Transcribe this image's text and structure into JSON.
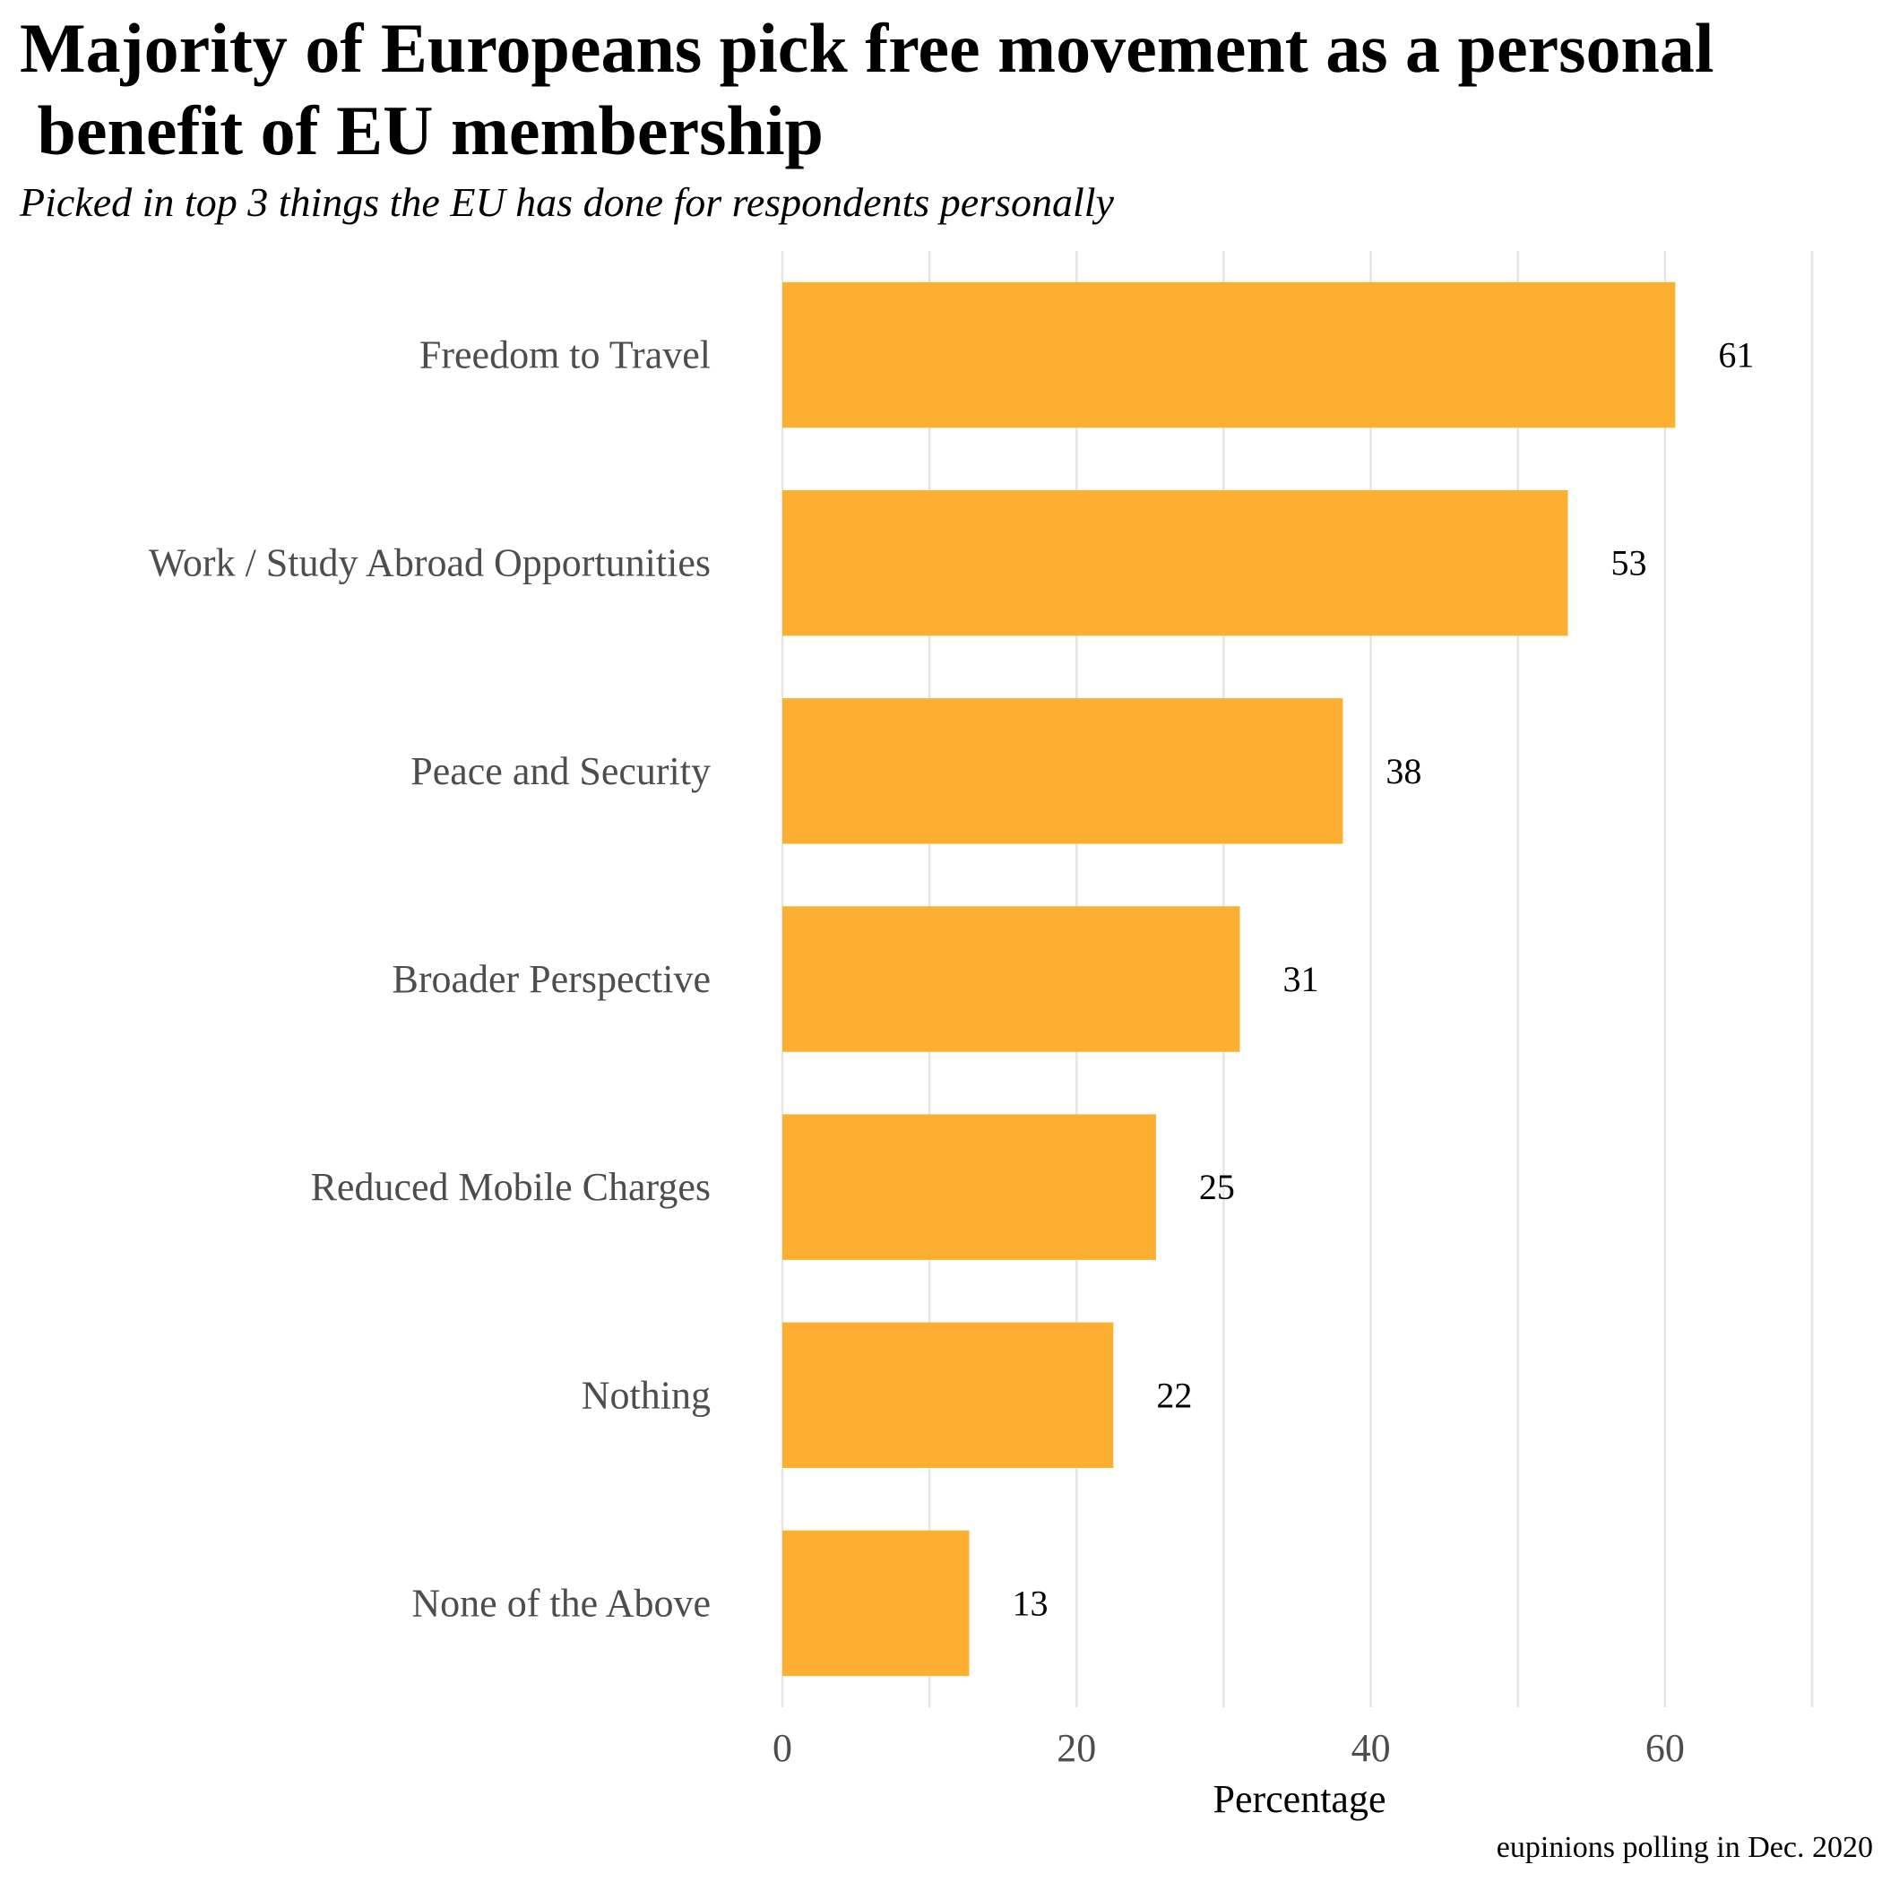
{
  "chart_data": {
    "type": "bar",
    "orientation": "horizontal",
    "title": "Majority of Europeans pick free movement as a personal\n benefit of EU membership",
    "subtitle": "Picked in top 3 things the EU has done for respondents personally",
    "caption": "eupinions polling in Dec. 2020",
    "xlabel": "Percentage",
    "ylabel": "",
    "categories": [
      "Freedom to Travel",
      "Work / Study Abroad Opportunities",
      "Peace and Security",
      "Broader Perspective",
      "Reduced Mobile Charges",
      "Nothing",
      "None of the Above"
    ],
    "values": [
      60.7,
      53.4,
      38.1,
      31.1,
      25.4,
      22.5,
      12.7
    ],
    "value_labels": [
      "61",
      "53",
      "38",
      "31",
      "25",
      "22",
      "13"
    ],
    "xlim": [
      0,
      70
    ],
    "xticks": [
      0,
      20,
      40,
      60
    ],
    "xtick_labels": [
      "0",
      "20",
      "40",
      "60"
    ],
    "minor_gridlines": [
      10,
      30,
      50,
      70
    ],
    "grid": true,
    "legend": "none",
    "colors": {
      "bar": "#FDAF31",
      "gridline": "#E6E6E6",
      "category_label": "#4D4D4D",
      "tick_label": "#4D4D4D",
      "value_label": "#000000",
      "text": "#000000"
    }
  }
}
